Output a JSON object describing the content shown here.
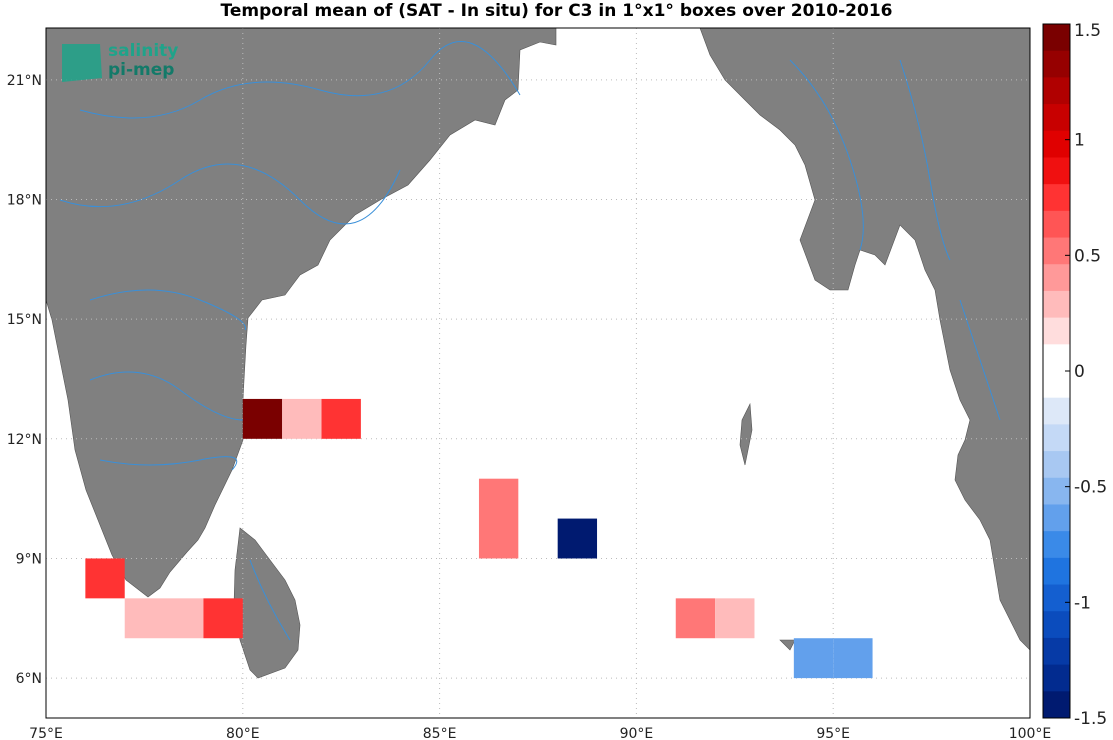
{
  "title": "Temporal mean of (SAT - In situ) for C3 in 1°x1° boxes over 2010-2016",
  "logo": {
    "line1": "salinity",
    "line2": "pi-mep"
  },
  "map": {
    "lon_range": [
      75,
      100
    ],
    "lat_range": [
      5,
      22.3
    ],
    "land_color": "#808080",
    "river_color": "#3a8fd8",
    "grid": "dotted"
  },
  "axes": {
    "lon_ticks": [
      {
        "value": 75,
        "label": "75°E"
      },
      {
        "value": 80,
        "label": "80°E"
      },
      {
        "value": 85,
        "label": "85°E"
      },
      {
        "value": 90,
        "label": "90°E"
      },
      {
        "value": 95,
        "label": "95°E"
      },
      {
        "value": 100,
        "label": "100°E"
      }
    ],
    "lat_ticks": [
      {
        "value": 6,
        "label": "6°N"
      },
      {
        "value": 9,
        "label": "9°N"
      },
      {
        "value": 12,
        "label": "12°N"
      },
      {
        "value": 15,
        "label": "15°N"
      },
      {
        "value": 18,
        "label": "18°N"
      },
      {
        "value": 21,
        "label": "21°N"
      }
    ]
  },
  "colorbar": {
    "range": [
      -1.5,
      1.5
    ],
    "ticks": [
      {
        "value": 1.5,
        "label": "1.5"
      },
      {
        "value": 1,
        "label": "1"
      },
      {
        "value": 0.5,
        "label": "0.5"
      },
      {
        "value": 0,
        "label": "0"
      },
      {
        "value": -0.5,
        "label": "-0.5"
      },
      {
        "value": -1,
        "label": "-1"
      },
      {
        "value": -1.5,
        "label": "-1.5"
      }
    ],
    "colors_top_to_bottom": [
      "#7a0000",
      "#960000",
      "#b00000",
      "#c80000",
      "#e00000",
      "#f01010",
      "#ff3333",
      "#ff5555",
      "#ff7777",
      "#ff9999",
      "#ffbbbb",
      "#ffdddd",
      "#ffffff",
      "#ffffff",
      "#dde8f8",
      "#c4d9f6",
      "#a8c8f2",
      "#88b6ef",
      "#62a0ec",
      "#3a8ae8",
      "#1f74e0",
      "#145fd0",
      "#0b4cbd",
      "#063aa6",
      "#022b8f",
      "#001a70"
    ]
  },
  "chart_data": {
    "type": "heatmap",
    "title": "Temporal mean of (SAT - In situ) for C3 in 1°x1° boxes over 2010-2016",
    "xlabel": "",
    "ylabel": "",
    "cells": [
      {
        "lon": 80,
        "lat": 12,
        "w": 1,
        "h": 1,
        "value": 1.5
      },
      {
        "lon": 81,
        "lat": 12,
        "w": 1,
        "h": 1,
        "value": 0.3
      },
      {
        "lon": 82,
        "lat": 12,
        "w": 1,
        "h": 1,
        "value": 0.8
      },
      {
        "lon": 86,
        "lat": 9,
        "w": 1,
        "h": 2,
        "value": 0.55
      },
      {
        "lon": 88,
        "lat": 9,
        "w": 1,
        "h": 1,
        "value": -1.4
      },
      {
        "lon": 76,
        "lat": 8,
        "w": 1,
        "h": 1,
        "value": 0.8
      },
      {
        "lon": 77,
        "lat": 7,
        "w": 2,
        "h": 1,
        "value": 0.3
      },
      {
        "lon": 79,
        "lat": 7,
        "w": 1,
        "h": 1,
        "value": 0.8
      },
      {
        "lon": 82,
        "lat": 7,
        "w": 1,
        "h": 1,
        "value": 0.1
      },
      {
        "lon": 91,
        "lat": 7,
        "w": 1,
        "h": 1,
        "value": 0.55
      },
      {
        "lon": 92,
        "lat": 7,
        "w": 1,
        "h": 1,
        "value": 0.3
      },
      {
        "lon": 94,
        "lat": 6,
        "w": 1,
        "h": 1,
        "value": -0.6
      },
      {
        "lon": 95,
        "lat": 6,
        "w": 1,
        "h": 1,
        "value": -0.65
      }
    ]
  }
}
